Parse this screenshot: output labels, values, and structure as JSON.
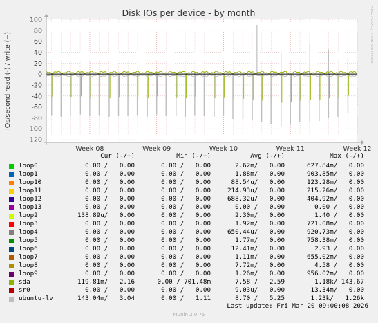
{
  "chart_data": {
    "type": "line",
    "title": "Disk IOs per device - by month",
    "ylabel": "IOs/second read (-) / write (+)",
    "ylim": [
      -125,
      100
    ],
    "yticks": [
      -120,
      -100,
      -80,
      -60,
      -40,
      -20,
      0,
      20,
      40,
      60,
      80,
      100
    ],
    "x_tick_labels": [
      "Week 08",
      "Week 09",
      "Week 10",
      "Week 11",
      "Week 12"
    ],
    "x_ticks": [
      8,
      9,
      10,
      11,
      12
    ],
    "x_range": [
      7.35,
      12.0
    ],
    "grid": true,
    "spike_series": {
      "name": "ubuntu-lv",
      "daily_read_spikes_x": [
        7.43,
        7.57,
        7.71,
        7.86,
        8.0,
        8.14,
        8.29,
        8.43,
        8.57,
        8.71,
        8.86,
        9.0,
        9.14,
        9.29,
        9.43,
        9.57,
        9.71,
        9.86,
        10.0,
        10.14,
        10.29,
        10.43,
        10.57,
        10.71,
        10.86,
        11.0,
        11.14,
        11.29,
        11.43,
        11.57,
        11.71,
        11.86
      ],
      "daily_read_spikes_y": [
        -75,
        -78,
        -76,
        -74,
        -77,
        -75,
        -78,
        -76,
        -76,
        -75,
        -78,
        -74,
        -76,
        -77,
        -78,
        -75,
        -76,
        -78,
        -77,
        -82,
        -82,
        -85,
        -88,
        -92,
        -95,
        -93,
        -88,
        -86,
        -86,
        -80,
        -78,
        -72
      ],
      "write_spikes_x": [
        10.5,
        10.86,
        11.29,
        11.57,
        11.86
      ],
      "write_spikes_y": [
        90,
        40,
        55,
        45,
        30
      ]
    }
  },
  "legend": {
    "headers": {
      "cur": "Cur (-/+)",
      "min": "Min (-/+)",
      "avg": "Avg (-/+)",
      "max": "Max (-/+)"
    },
    "rows": [
      {
        "name": "loop0",
        "color": "#00cc00",
        "cur": "0.00 /   0.00",
        "min": "0.00 /   0.00",
        "avg": "2.62m/   0.00",
        "max": "627.84m/   0.00"
      },
      {
        "name": "loop1",
        "color": "#0066b3",
        "cur": "0.00 /   0.00",
        "min": "0.00 /   0.00",
        "avg": "1.88m/   0.00",
        "max": "903.85m/   0.00"
      },
      {
        "name": "loop10",
        "color": "#ff8000",
        "cur": "0.00 /   0.00",
        "min": "0.00 /   0.00",
        "avg": "88.54u/   0.00",
        "max": "123.28m/   0.00"
      },
      {
        "name": "loop11",
        "color": "#ffcc00",
        "cur": "0.00 /   0.00",
        "min": "0.00 /   0.00",
        "avg": "214.93u/   0.00",
        "max": "215.26m/   0.00"
      },
      {
        "name": "loop12",
        "color": "#330099",
        "cur": "0.00 /   0.00",
        "min": "0.00 /   0.00",
        "avg": "688.32u/   0.00",
        "max": "404.92m/   0.00"
      },
      {
        "name": "loop13",
        "color": "#990099",
        "cur": "0.00 /   0.00",
        "min": "0.00 /   0.00",
        "avg": "0.00 /   0.00",
        "max": "0.00 /   0.00"
      },
      {
        "name": "loop2",
        "color": "#ccff00",
        "cur": "138.89u/   0.00",
        "min": "0.00 /   0.00",
        "avg": "2.30m/   0.00",
        "max": "1.40 /   0.00"
      },
      {
        "name": "loop3",
        "color": "#ff0000",
        "cur": "0.00 /   0.00",
        "min": "0.00 /   0.00",
        "avg": "1.92m/   0.00",
        "max": "721.08m/   0.00"
      },
      {
        "name": "loop4",
        "color": "#808080",
        "cur": "0.00 /   0.00",
        "min": "0.00 /   0.00",
        "avg": "650.44u/   0.00",
        "max": "920.73m/   0.00"
      },
      {
        "name": "loop5",
        "color": "#008f00",
        "cur": "0.00 /   0.00",
        "min": "0.00 /   0.00",
        "avg": "1.77m/   0.00",
        "max": "758.38m/   0.00"
      },
      {
        "name": "loop6",
        "color": "#00487d",
        "cur": "0.00 /   0.00",
        "min": "0.00 /   0.00",
        "avg": "12.41m/   0.00",
        "max": "2.93 /   0.00"
      },
      {
        "name": "loop7",
        "color": "#b35a00",
        "cur": "0.00 /   0.00",
        "min": "0.00 /   0.00",
        "avg": "1.11m/   0.00",
        "max": "655.02m/   0.00"
      },
      {
        "name": "loop8",
        "color": "#b38f00",
        "cur": "0.00 /   0.00",
        "min": "0.00 /   0.00",
        "avg": "7.72m/   0.00",
        "max": "4.58 /   0.00"
      },
      {
        "name": "loop9",
        "color": "#6b006b",
        "cur": "0.00 /   0.00",
        "min": "0.00 /   0.00",
        "avg": "1.26m/   0.00",
        "max": "956.02m/   0.00"
      },
      {
        "name": "sda",
        "color": "#8fb300",
        "cur": "119.81m/   2.16",
        "min": "0.00 / 701.48m",
        "avg": "7.58 /   2.59",
        "max": "1.18k/ 143.67"
      },
      {
        "name": "sr0",
        "color": "#b30000",
        "cur": "0.00 /   0.00",
        "min": "0.00 /   0.00",
        "avg": "9.03u/   0.00",
        "max": "13.34m/   0.00"
      },
      {
        "name": "ubuntu-lv",
        "color": "#bebebe",
        "cur": "143.04m/   3.04",
        "min": "0.00 /   1.11",
        "avg": "8.70 /   5.25",
        "max": "1.23k/   1.26k"
      }
    ]
  },
  "last_update": "Last update: Fri Mar 20 09:00:08 2026",
  "footer": "Munin 2.0.75",
  "credit": "RRDTOOL / TOBI OETIKER"
}
